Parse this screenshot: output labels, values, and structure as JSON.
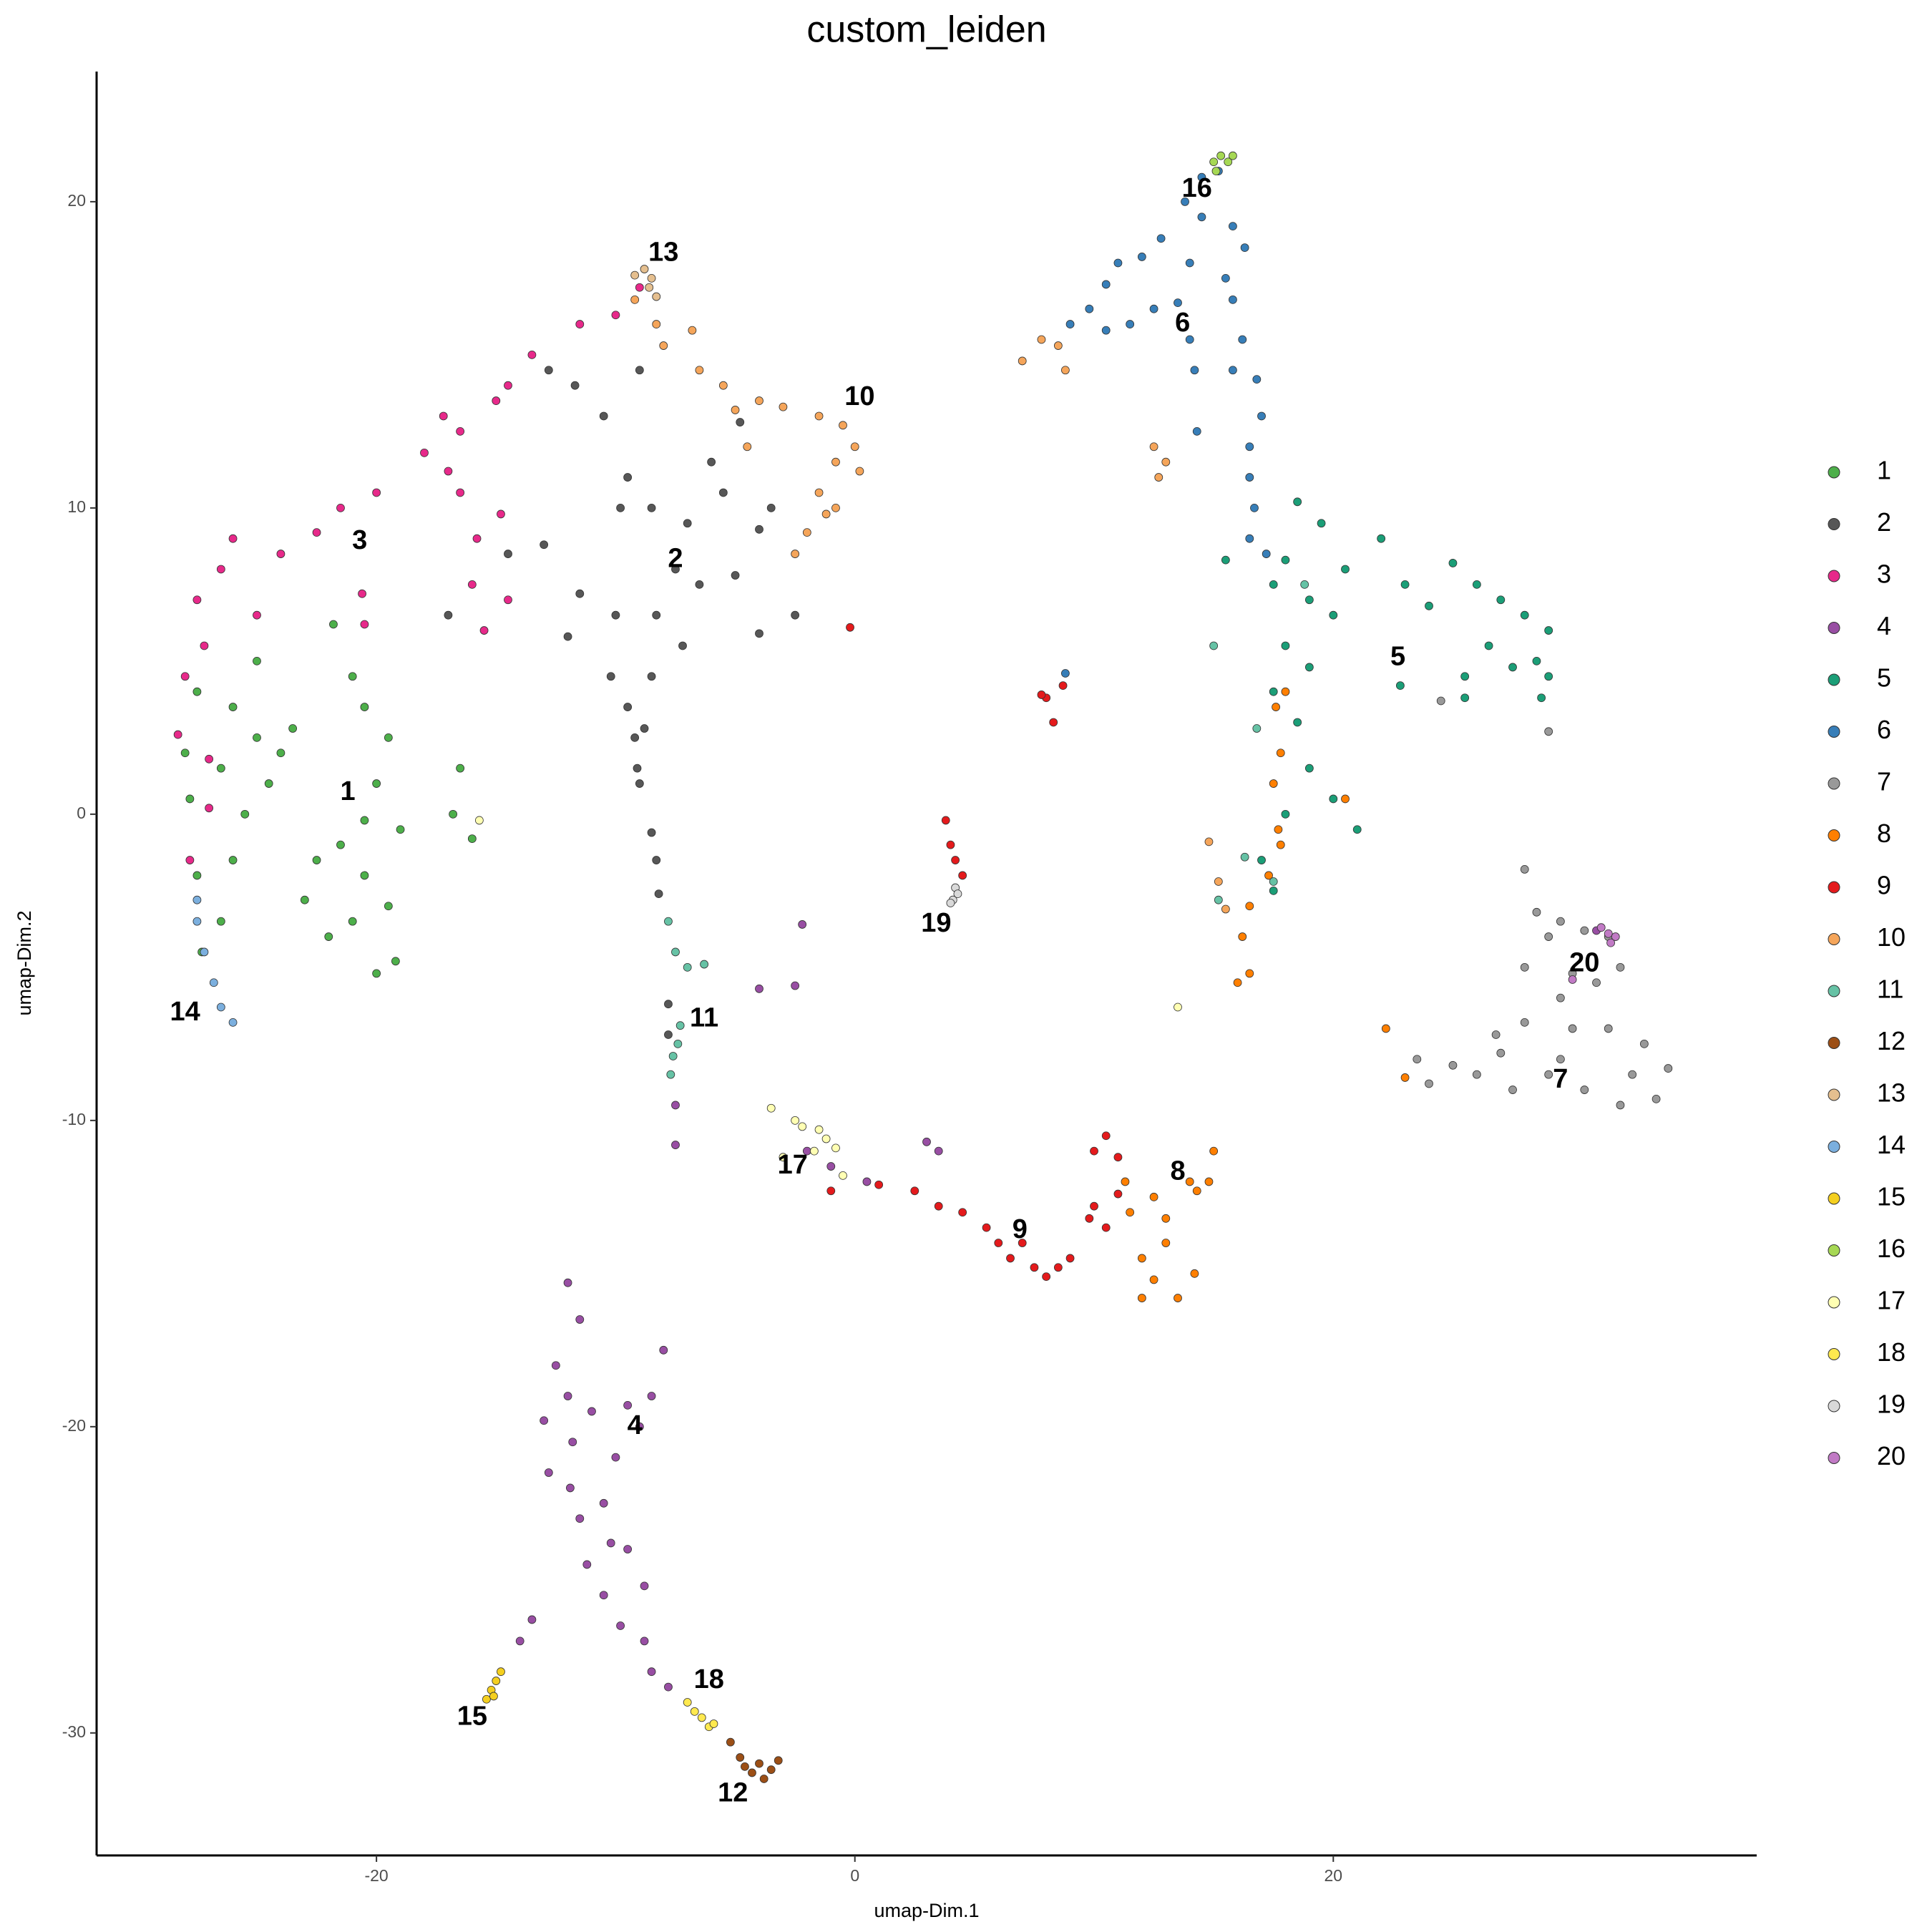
{
  "chart_data": {
    "type": "scatter",
    "title": "custom_leiden",
    "x_label": "umap-Dim.1",
    "y_label": "umap-Dim.2",
    "xlim": [
      -31.7,
      37.7
    ],
    "ylim": [
      -34,
      24.25
    ],
    "xticks": [
      -20,
      0,
      20
    ],
    "yticks": [
      -30,
      -20,
      -10,
      0,
      10,
      20
    ],
    "grid": false,
    "legend": "right",
    "series": [
      {
        "name": "1",
        "color": "#4DAF4A",
        "x": [
          -27.5,
          -26,
          -25,
          -26.5,
          -24,
          -27.8,
          -25.5,
          -26,
          -27.5,
          -26.5,
          -27.3,
          -24.5,
          -23.5,
          -28,
          -25,
          -21,
          -20.5,
          -19.5,
          -20,
          -19,
          -21.5,
          -22.5,
          -20.5,
          -19.5,
          -21,
          -22,
          -19.2,
          -20.5,
          -23,
          -21.8,
          -16.5,
          -16.8,
          -16,
          -20
        ],
        "y": [
          4,
          3.5,
          2.5,
          1.5,
          2,
          0.5,
          0,
          -1.5,
          -2,
          -3.5,
          -4.5,
          1,
          2.8,
          2,
          5,
          4.5,
          3.5,
          2.5,
          1,
          -0.5,
          -1,
          -1.5,
          -2,
          -3,
          -3.5,
          -4,
          -4.8,
          -0.2,
          -2.8,
          6.2,
          1.5,
          0,
          -0.8,
          -5.2
        ]
      },
      {
        "name": "2",
        "color": "#575757",
        "x": [
          -12.8,
          -11.7,
          -10.5,
          -9,
          -9.5,
          -9.8,
          -8.5,
          -7,
          -5.5,
          -4,
          -3.5,
          -6,
          -4.8,
          -6.5,
          -7.5,
          -8.3,
          -7.2,
          -8.5,
          -9.5,
          -10.2,
          -9.2,
          -9.1,
          -9,
          -11.5,
          -12,
          -13,
          -14.5,
          -17,
          -4,
          -2.5,
          -8.8,
          -8.5,
          -8.3,
          -8.2,
          -7.8,
          -7.8,
          -10,
          -5
        ],
        "y": [
          14.5,
          14,
          13,
          14.5,
          11,
          10,
          10,
          9.5,
          10.5,
          9.3,
          10,
          11.5,
          12.8,
          7.5,
          8,
          6.5,
          5.5,
          4.5,
          3.5,
          4.5,
          2.5,
          1.5,
          1,
          7.2,
          5.8,
          8.8,
          8.5,
          6.5,
          5.9,
          6.5,
          2.8,
          -0.6,
          -1.5,
          -2.6,
          -6.2,
          -7.2,
          6.5,
          7.8
        ]
      },
      {
        "name": "3",
        "color": "#E7298A",
        "x": [
          -28,
          -27.5,
          -26.5,
          -25,
          -24,
          -22.5,
          -21.5,
          -20,
          -18,
          -16.5,
          -15,
          -13.5,
          -14.5,
          -17.2,
          -16.5,
          -15.8,
          -16,
          -15.5,
          -14.5,
          -14.8,
          -17,
          -20.6,
          -26,
          -27.2,
          -28.3,
          -27,
          -27.8,
          -11.5,
          -10,
          -9,
          -20.5,
          -27
        ],
        "y": [
          4.5,
          7,
          8,
          6.5,
          8.5,
          9.2,
          10,
          10.5,
          11.8,
          12.5,
          13.5,
          15,
          14,
          13,
          10.5,
          9,
          7.5,
          6,
          7,
          9.8,
          11.2,
          7.2,
          9,
          5.5,
          2.6,
          0.2,
          -1.5,
          16,
          16.3,
          17.2,
          6.2,
          1.8
        ]
      },
      {
        "name": "4",
        "color": "#984EA3",
        "x": [
          -12,
          -11.5,
          -12.5,
          -12,
          -11.8,
          -11,
          -9.5,
          -8.5,
          -9,
          -10,
          -10.5,
          -11.5,
          -11.2,
          -10.2,
          -9.5,
          -10.5,
          -9.8,
          -8.8,
          -8.5,
          -7.8,
          -8.8,
          -11.9,
          -12.8,
          -13,
          -8,
          -13.5,
          -14,
          -1,
          0.5,
          -2,
          3,
          3.5,
          -4,
          -2.5,
          -2.2,
          -7.5,
          -7.5,
          31
        ],
        "y": [
          -15.3,
          -16.5,
          -18,
          -19,
          -20.5,
          -19.5,
          -19.3,
          -19,
          -20,
          -21,
          -22.5,
          -23,
          -24.5,
          -23.8,
          -24,
          -25.5,
          -26.5,
          -27,
          -28,
          -28.5,
          -25.2,
          -22,
          -21.5,
          -19.8,
          -17.5,
          -26.3,
          -27,
          -11.5,
          -12,
          -11,
          -10.7,
          -11,
          -5.7,
          -5.6,
          -3.6,
          -9.5,
          -10.8,
          -3.8
        ]
      },
      {
        "name": "5",
        "color": "#1B9E77",
        "x": [
          18.5,
          19.5,
          18,
          17.5,
          19,
          20,
          20.5,
          22,
          23,
          24,
          25,
          26,
          27,
          28,
          29,
          28.5,
          27.5,
          26.5,
          25.5,
          29,
          18,
          19,
          17.5,
          18.5,
          19,
          18,
          20,
          21,
          17,
          17.5,
          22.8,
          28.7,
          15.5,
          25.5
        ],
        "y": [
          10.2,
          9.5,
          8.3,
          7.5,
          7,
          6.5,
          8,
          9,
          7.5,
          6.8,
          8.2,
          7.5,
          7,
          6.5,
          6,
          5,
          4.8,
          5.5,
          4.5,
          4.5,
          5.5,
          4.8,
          4,
          3,
          1.5,
          0,
          0.5,
          -0.5,
          -1.5,
          -2.5,
          4.2,
          3.8,
          8.3,
          3.8
        ]
      },
      {
        "name": "6",
        "color": "#377EB8",
        "x": [
          14.5,
          15.2,
          13.8,
          14.5,
          15.8,
          16.3,
          14,
          15.5,
          12.8,
          12,
          11,
          10.5,
          9.8,
          9,
          10.5,
          11.5,
          12.5,
          13.5,
          14,
          14.2,
          15.8,
          16.2,
          16.8,
          17,
          16.5,
          14.3,
          16.5,
          16.7,
          16.5,
          17.2,
          15.8,
          8.8
        ],
        "y": [
          20.8,
          21,
          20,
          19.5,
          19.2,
          18.5,
          18,
          17.5,
          18.8,
          18.2,
          18,
          17.3,
          16.5,
          16,
          15.8,
          16,
          16.5,
          16.7,
          15.5,
          14.5,
          16.8,
          15.5,
          14.2,
          13,
          12,
          12.5,
          11,
          10,
          9,
          8.5,
          14.5,
          4.6
        ]
      },
      {
        "name": "7",
        "color": "#999999",
        "x": [
          28,
          28.5,
          29.5,
          30.5,
          31.5,
          32,
          31,
          29.5,
          28,
          28,
          30,
          31.5,
          33,
          34,
          33.5,
          32,
          30.5,
          29,
          27.5,
          26,
          25,
          24,
          23.5,
          27,
          29.5,
          32.5,
          29,
          24.5,
          29,
          30,
          26.8
        ],
        "y": [
          -1.8,
          -3.2,
          -3.5,
          -3.8,
          -4,
          -5,
          -5.5,
          -6,
          -5,
          -6.8,
          -7,
          -7,
          -7.5,
          -8.3,
          -9.3,
          -9.5,
          -9,
          -8.5,
          -9,
          -8.5,
          -8.2,
          -8.8,
          -8,
          -7.8,
          -8,
          -8.5,
          -4,
          3.7,
          2.7,
          -5.2,
          -7.2
        ]
      },
      {
        "name": "8",
        "color": "#FF7F00",
        "x": [
          14,
          12.5,
          11.5,
          12,
          13,
          12.5,
          13.5,
          12,
          14.2,
          13,
          15,
          14.8,
          14.3,
          18,
          17.6,
          17.8,
          17.5,
          17.7,
          17.3,
          16.5,
          16.2,
          16,
          16.5,
          20.5,
          17.8,
          22.2,
          23,
          11.3
        ],
        "y": [
          -12,
          -12.5,
          -13,
          -14.5,
          -14,
          -15.2,
          -15.8,
          -15.8,
          -15,
          -13.2,
          -11,
          -12,
          -12.3,
          4,
          3.5,
          2,
          1,
          -0.5,
          -2,
          -3,
          -4,
          -5.5,
          -5.2,
          0.5,
          -1,
          -7,
          -8.6,
          -12
        ]
      },
      {
        "name": "9",
        "color": "#E41A1C",
        "x": [
          -1,
          1,
          2.5,
          3.5,
          4.5,
          5.5,
          6,
          7,
          7.5,
          8.5,
          8,
          6.5,
          9,
          10,
          10.5,
          11,
          10,
          10.5,
          9.8,
          11,
          8,
          8.3,
          8.7,
          7.8,
          4,
          4.5,
          4.2,
          3.8,
          -0.2
        ],
        "y": [
          -12.3,
          -12.1,
          -12.3,
          -12.8,
          -13,
          -13.5,
          -14,
          -14,
          -14.8,
          -14.8,
          -15.1,
          -14.5,
          -14.5,
          -11,
          -10.5,
          -11.2,
          -12.8,
          -13.5,
          -13.2,
          -12.4,
          3.8,
          3,
          4.2,
          3.9,
          -1,
          -2,
          -1.5,
          -0.2,
          6.1
        ]
      },
      {
        "name": "10",
        "color": "#F5A55A",
        "x": [
          -6.5,
          -5.5,
          -4,
          -5,
          -3,
          -1.5,
          -0.5,
          0,
          0.2,
          -0.8,
          -1.5,
          -1.2,
          -2,
          -0.8,
          -4.5,
          -2.5,
          -8,
          -6.8,
          -9.2,
          -8.3,
          7,
          7.8,
          8.5,
          8.8,
          12.5,
          13,
          12.7,
          14.8,
          15.2,
          15.5
        ],
        "y": [
          14.5,
          14,
          13.5,
          13.2,
          13.3,
          13,
          12.7,
          12,
          11.2,
          11.5,
          10.5,
          9.8,
          9.2,
          10,
          12,
          8.5,
          15.3,
          15.8,
          16.8,
          16,
          14.8,
          15.5,
          15.3,
          14.5,
          12,
          11.5,
          11,
          -0.9,
          -2.2,
          -3.1
        ]
      },
      {
        "name": "11",
        "color": "#66C2A5",
        "x": [
          -7.8,
          -7.5,
          -7,
          -6.3,
          -7.3,
          -7.6,
          -7.7,
          -7.4,
          15.2,
          16.8,
          16.3,
          17.5,
          18.8,
          15
        ],
        "y": [
          -3.5,
          -4.5,
          -5,
          -4.9,
          -6.9,
          -7.9,
          -8.5,
          -7.5,
          -2.8,
          2.8,
          -1.4,
          -2.2,
          7.5,
          5.5
        ]
      },
      {
        "name": "12",
        "color": "#9C4F16",
        "x": [
          -5.2,
          -4.8,
          -4,
          -3.5,
          -3.8,
          -4.3,
          -3.2,
          -4.6
        ],
        "y": [
          -30.3,
          -30.8,
          -31,
          -31.2,
          -31.5,
          -31.3,
          -30.9,
          -31.1
        ]
      },
      {
        "name": "13",
        "color": "#E5BF8F",
        "x": [
          -9.2,
          -8.8,
          -8.5,
          -8.3,
          -8.6
        ],
        "y": [
          17.6,
          17.8,
          17.5,
          16.9,
          17.2
        ]
      },
      {
        "name": "14",
        "color": "#7BAFDE",
        "x": [
          -27.5,
          -27.2,
          -26.8,
          -26.5,
          -26,
          -27.5
        ],
        "y": [
          -2.8,
          -4.5,
          -5.5,
          -6.3,
          -6.8,
          -3.5
        ]
      },
      {
        "name": "15",
        "color": "#F4CF1F",
        "x": [
          -15,
          -15.2,
          -15.4,
          -14.8,
          -15.1
        ],
        "y": [
          -28.3,
          -28.6,
          -28.9,
          -28,
          -28.8
        ]
      },
      {
        "name": "16",
        "color": "#A6D854",
        "x": [
          15,
          15.3,
          15.6,
          15.1,
          15.8
        ],
        "y": [
          21.3,
          21.5,
          21.3,
          21,
          21.5
        ]
      },
      {
        "name": "17",
        "color": "#FFFFB3",
        "x": [
          -3.5,
          -2.5,
          -2.2,
          -1.5,
          -1.2,
          -0.8,
          -1.7,
          -0.5,
          -15.7,
          13.5,
          -3
        ],
        "y": [
          -9.6,
          -10,
          -10.2,
          -10.3,
          -10.6,
          -10.9,
          -11,
          -11.8,
          -0.2,
          -6.3,
          -11.2
        ]
      },
      {
        "name": "18",
        "color": "#FFE94F",
        "x": [
          -7,
          -6.7,
          -6.4,
          -6.1,
          -5.9
        ],
        "y": [
          -29,
          -29.3,
          -29.5,
          -29.8,
          -29.7
        ]
      },
      {
        "name": "19",
        "color": "#D9D9D9",
        "x": [
          4.2,
          4.3,
          4.1,
          4
        ],
        "y": [
          -2.4,
          -2.6,
          -2.8,
          -2.9
        ]
      },
      {
        "name": "20",
        "color": "#C17AC5",
        "x": [
          31.2,
          31.5,
          31.8,
          31.6,
          30
        ],
        "y": [
          -3.7,
          -3.9,
          -4,
          -4.2,
          -5.4
        ]
      }
    ],
    "annotations": [
      {
        "text": "1",
        "x": -21.2,
        "y": 0.7
      },
      {
        "text": "2",
        "x": -7.5,
        "y": 8.3
      },
      {
        "text": "3",
        "x": -20.7,
        "y": 8.9
      },
      {
        "text": "4",
        "x": -9.2,
        "y": -20
      },
      {
        "text": "5",
        "x": 22.7,
        "y": 5.1
      },
      {
        "text": "6",
        "x": 13.7,
        "y": 16
      },
      {
        "text": "7",
        "x": 29.5,
        "y": -8.7
      },
      {
        "text": "8",
        "x": 13.5,
        "y": -11.7
      },
      {
        "text": "9",
        "x": 6.9,
        "y": -13.6
      },
      {
        "text": "10",
        "x": 0.2,
        "y": 13.6
      },
      {
        "text": "11",
        "x": -6.3,
        "y": -6.7
      },
      {
        "text": "12",
        "x": -5.1,
        "y": -32
      },
      {
        "text": "13",
        "x": -8,
        "y": 18.3
      },
      {
        "text": "14",
        "x": -28,
        "y": -6.5
      },
      {
        "text": "15",
        "x": -16,
        "y": -29.5
      },
      {
        "text": "16",
        "x": 14.3,
        "y": 20.4
      },
      {
        "text": "17",
        "x": -2.6,
        "y": -11.5
      },
      {
        "text": "18",
        "x": -6.1,
        "y": -28.3
      },
      {
        "text": "19",
        "x": 3.4,
        "y": -3.6
      },
      {
        "text": "20",
        "x": 30.5,
        "y": -4.9
      }
    ]
  }
}
